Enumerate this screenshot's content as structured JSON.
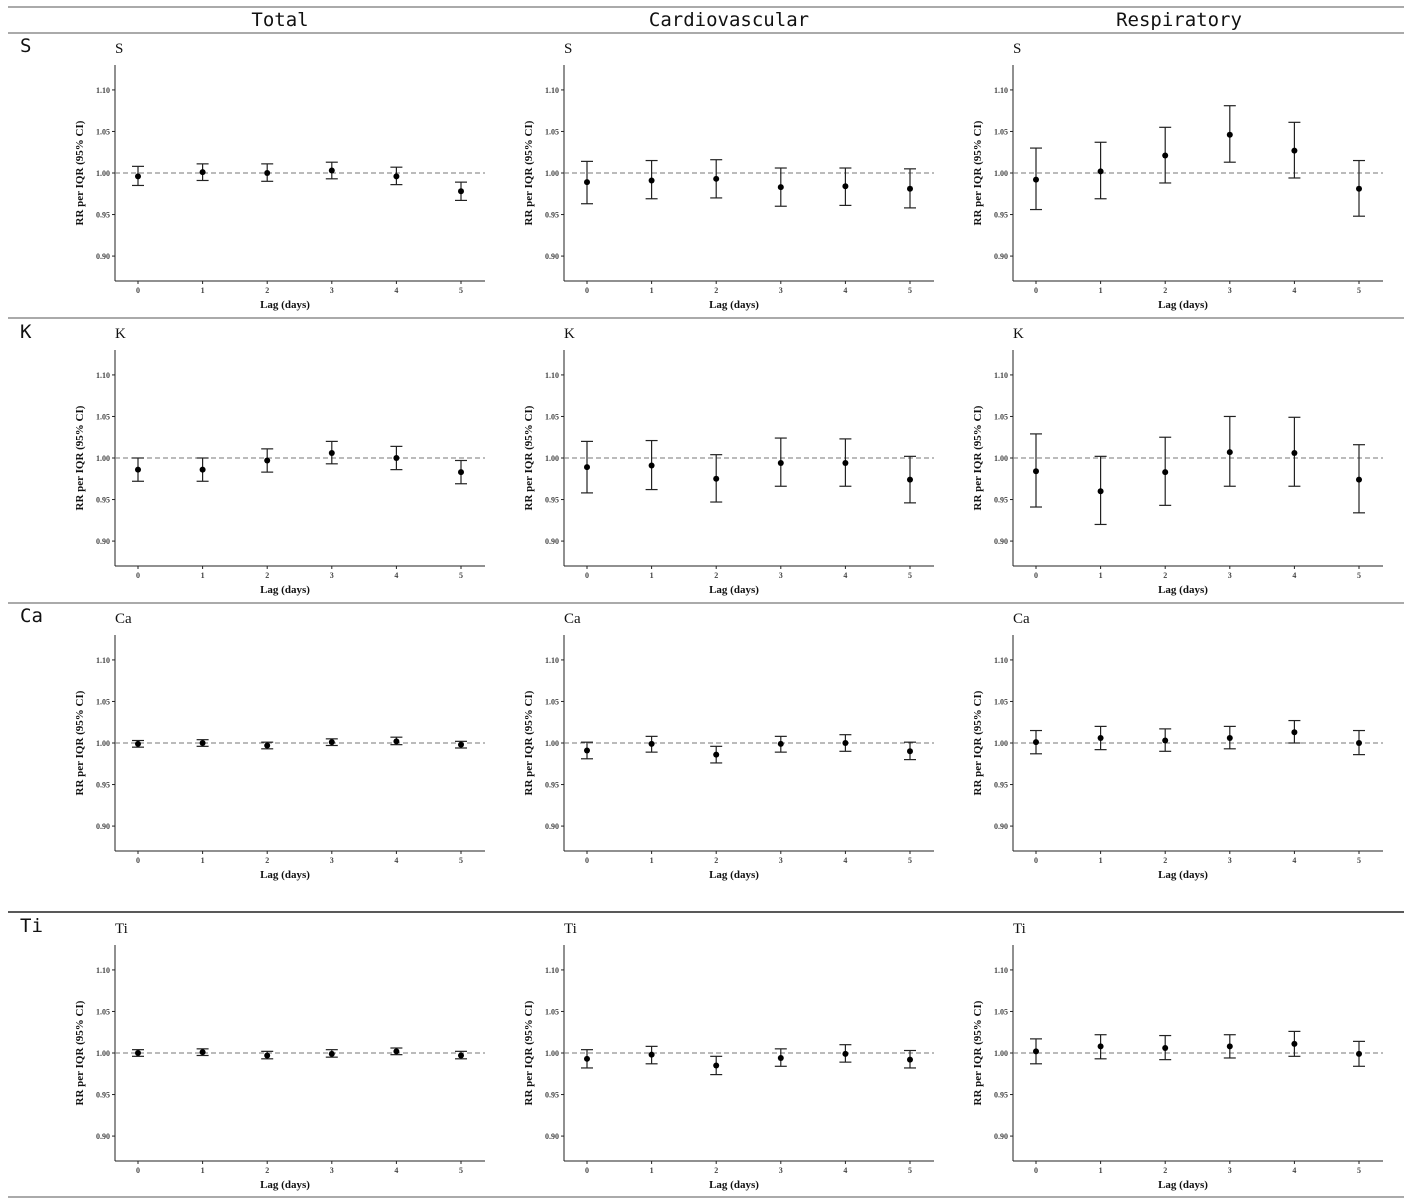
{
  "column_headers": [
    "Total",
    "Cardiovascular",
    "Respiratory"
  ],
  "row_headers": [
    "S",
    "K",
    "Ca",
    "Ti"
  ],
  "chart_data": [
    {
      "type": "scatter",
      "row": "S",
      "column": "Total",
      "title": "S",
      "xlabel": "Lag (days)",
      "ylabel": "RR per IQR (95% CI)",
      "x": [
        0,
        1,
        2,
        3,
        4,
        5
      ],
      "y": [
        0.996,
        1.001,
        1.0,
        1.003,
        0.996,
        0.978
      ],
      "ci_low": [
        0.985,
        0.991,
        0.99,
        0.993,
        0.986,
        0.967
      ],
      "ci_high": [
        1.008,
        1.011,
        1.011,
        1.013,
        1.007,
        0.989
      ],
      "ylim": [
        0.87,
        1.13
      ],
      "yticks": [
        0.9,
        0.95,
        1.0,
        1.05,
        1.1
      ],
      "reference_line": 1.0
    },
    {
      "type": "scatter",
      "row": "S",
      "column": "Cardiovascular",
      "title": "S",
      "xlabel": "Lag (days)",
      "ylabel": "RR per IQR (95% CI)",
      "x": [
        0,
        1,
        2,
        3,
        4,
        5
      ],
      "y": [
        0.989,
        0.991,
        0.993,
        0.983,
        0.984,
        0.981
      ],
      "ci_low": [
        0.963,
        0.969,
        0.97,
        0.96,
        0.961,
        0.958
      ],
      "ci_high": [
        1.014,
        1.015,
        1.016,
        1.006,
        1.006,
        1.005
      ],
      "ylim": [
        0.87,
        1.13
      ],
      "yticks": [
        0.9,
        0.95,
        1.0,
        1.05,
        1.1
      ],
      "reference_line": 1.0
    },
    {
      "type": "scatter",
      "row": "S",
      "column": "Respiratory",
      "title": "S",
      "xlabel": "Lag (days)",
      "ylabel": "RR per IQR (95% CI)",
      "x": [
        0,
        1,
        2,
        3,
        4,
        5
      ],
      "y": [
        0.992,
        1.002,
        1.021,
        1.046,
        1.027,
        0.981
      ],
      "ci_low": [
        0.956,
        0.969,
        0.988,
        1.013,
        0.994,
        0.948
      ],
      "ci_high": [
        1.03,
        1.037,
        1.055,
        1.081,
        1.061,
        1.015
      ],
      "ylim": [
        0.87,
        1.13
      ],
      "yticks": [
        0.9,
        0.95,
        1.0,
        1.05,
        1.1
      ],
      "reference_line": 1.0
    },
    {
      "type": "scatter",
      "row": "K",
      "column": "Total",
      "title": "K",
      "xlabel": "Lag (days)",
      "ylabel": "RR per IQR (95% CI)",
      "x": [
        0,
        1,
        2,
        3,
        4,
        5
      ],
      "y": [
        0.986,
        0.986,
        0.997,
        1.006,
        1.0,
        0.983
      ],
      "ci_low": [
        0.972,
        0.972,
        0.983,
        0.993,
        0.986,
        0.969
      ],
      "ci_high": [
        1.0,
        1.0,
        1.011,
        1.02,
        1.014,
        0.997
      ],
      "ylim": [
        0.87,
        1.13
      ],
      "yticks": [
        0.9,
        0.95,
        1.0,
        1.05,
        1.1
      ],
      "reference_line": 1.0
    },
    {
      "type": "scatter",
      "row": "K",
      "column": "Cardiovascular",
      "title": "K",
      "xlabel": "Lag (days)",
      "ylabel": "RR per IQR (95% CI)",
      "x": [
        0,
        1,
        2,
        3,
        4,
        5
      ],
      "y": [
        0.989,
        0.991,
        0.975,
        0.994,
        0.994,
        0.974
      ],
      "ci_low": [
        0.958,
        0.962,
        0.947,
        0.966,
        0.966,
        0.946
      ],
      "ci_high": [
        1.02,
        1.021,
        1.004,
        1.024,
        1.023,
        1.002
      ],
      "ylim": [
        0.87,
        1.13
      ],
      "yticks": [
        0.9,
        0.95,
        1.0,
        1.05,
        1.1
      ],
      "reference_line": 1.0
    },
    {
      "type": "scatter",
      "row": "K",
      "column": "Respiratory",
      "title": "K",
      "xlabel": "Lag (days)",
      "ylabel": "RR per IQR (95% CI)",
      "x": [
        0,
        1,
        2,
        3,
        4,
        5
      ],
      "y": [
        0.984,
        0.96,
        0.983,
        1.007,
        1.006,
        0.974
      ],
      "ci_low": [
        0.941,
        0.92,
        0.943,
        0.966,
        0.966,
        0.934
      ],
      "ci_high": [
        1.029,
        1.002,
        1.025,
        1.05,
        1.049,
        1.016
      ],
      "ylim": [
        0.87,
        1.13
      ],
      "yticks": [
        0.9,
        0.95,
        1.0,
        1.05,
        1.1
      ],
      "reference_line": 1.0
    },
    {
      "type": "scatter",
      "row": "Ca",
      "column": "Total",
      "title": "Ca",
      "xlabel": "Lag (days)",
      "ylabel": "RR per IQR (95% CI)",
      "x": [
        0,
        1,
        2,
        3,
        4,
        5
      ],
      "y": [
        0.999,
        1.0,
        0.997,
        1.001,
        1.002,
        0.998
      ],
      "ci_low": [
        0.995,
        0.996,
        0.993,
        0.997,
        0.998,
        0.994
      ],
      "ci_high": [
        1.003,
        1.004,
        1.001,
        1.005,
        1.007,
        1.002
      ],
      "ylim": [
        0.87,
        1.13
      ],
      "yticks": [
        0.9,
        0.95,
        1.0,
        1.05,
        1.1
      ],
      "reference_line": 1.0
    },
    {
      "type": "scatter",
      "row": "Ca",
      "column": "Cardiovascular",
      "title": "Ca",
      "xlabel": "Lag (days)",
      "ylabel": "RR per IQR (95% CI)",
      "x": [
        0,
        1,
        2,
        3,
        4,
        5
      ],
      "y": [
        0.991,
        0.999,
        0.986,
        0.999,
        1.0,
        0.99
      ],
      "ci_low": [
        0.981,
        0.989,
        0.976,
        0.989,
        0.99,
        0.98
      ],
      "ci_high": [
        1.001,
        1.008,
        0.996,
        1.008,
        1.01,
        1.001
      ],
      "ylim": [
        0.87,
        1.13
      ],
      "yticks": [
        0.9,
        0.95,
        1.0,
        1.05,
        1.1
      ],
      "reference_line": 1.0
    },
    {
      "type": "scatter",
      "row": "Ca",
      "column": "Respiratory",
      "title": "Ca",
      "xlabel": "Lag (days)",
      "ylabel": "RR per IQR (95% CI)",
      "x": [
        0,
        1,
        2,
        3,
        4,
        5
      ],
      "y": [
        1.001,
        1.006,
        1.003,
        1.006,
        1.013,
        1.0
      ],
      "ci_low": [
        0.987,
        0.992,
        0.99,
        0.993,
        1.0,
        0.986
      ],
      "ci_high": [
        1.015,
        1.02,
        1.017,
        1.02,
        1.027,
        1.015
      ],
      "ylim": [
        0.87,
        1.13
      ],
      "yticks": [
        0.9,
        0.95,
        1.0,
        1.05,
        1.1
      ],
      "reference_line": 1.0
    },
    {
      "type": "scatter",
      "row": "Ti",
      "column": "Total",
      "title": "Ti",
      "xlabel": "Lag (days)",
      "ylabel": "RR per IQR (95% CI)",
      "x": [
        0,
        1,
        2,
        3,
        4,
        5
      ],
      "y": [
        1.0,
        1.001,
        0.997,
        0.999,
        1.002,
        0.997
      ],
      "ci_low": [
        0.996,
        0.997,
        0.993,
        0.995,
        0.998,
        0.993
      ],
      "ci_high": [
        1.004,
        1.005,
        1.002,
        1.004,
        1.006,
        1.002
      ],
      "ylim": [
        0.87,
        1.13
      ],
      "yticks": [
        0.9,
        0.95,
        1.0,
        1.05,
        1.1
      ],
      "reference_line": 1.0
    },
    {
      "type": "scatter",
      "row": "Ti",
      "column": "Cardiovascular",
      "title": "Ti",
      "xlabel": "Lag (days)",
      "ylabel": "RR per IQR (95% CI)",
      "x": [
        0,
        1,
        2,
        3,
        4,
        5
      ],
      "y": [
        0.993,
        0.998,
        0.985,
        0.994,
        0.999,
        0.992
      ],
      "ci_low": [
        0.982,
        0.987,
        0.974,
        0.984,
        0.989,
        0.982
      ],
      "ci_high": [
        1.004,
        1.008,
        0.996,
        1.005,
        1.01,
        1.003
      ],
      "ylim": [
        0.87,
        1.13
      ],
      "yticks": [
        0.9,
        0.95,
        1.0,
        1.05,
        1.1
      ],
      "reference_line": 1.0
    },
    {
      "type": "scatter",
      "row": "Ti",
      "column": "Respiratory",
      "title": "Ti",
      "xlabel": "Lag (days)",
      "ylabel": "RR per IQR (95% CI)",
      "x": [
        0,
        1,
        2,
        3,
        4,
        5
      ],
      "y": [
        1.002,
        1.008,
        1.006,
        1.008,
        1.011,
        0.999
      ],
      "ci_low": [
        0.987,
        0.993,
        0.992,
        0.994,
        0.996,
        0.984
      ],
      "ci_high": [
        1.017,
        1.022,
        1.021,
        1.022,
        1.026,
        1.014
      ],
      "ylim": [
        0.87,
        1.13
      ],
      "yticks": [
        0.9,
        0.95,
        1.0,
        1.05,
        1.1
      ],
      "reference_line": 1.0
    }
  ]
}
